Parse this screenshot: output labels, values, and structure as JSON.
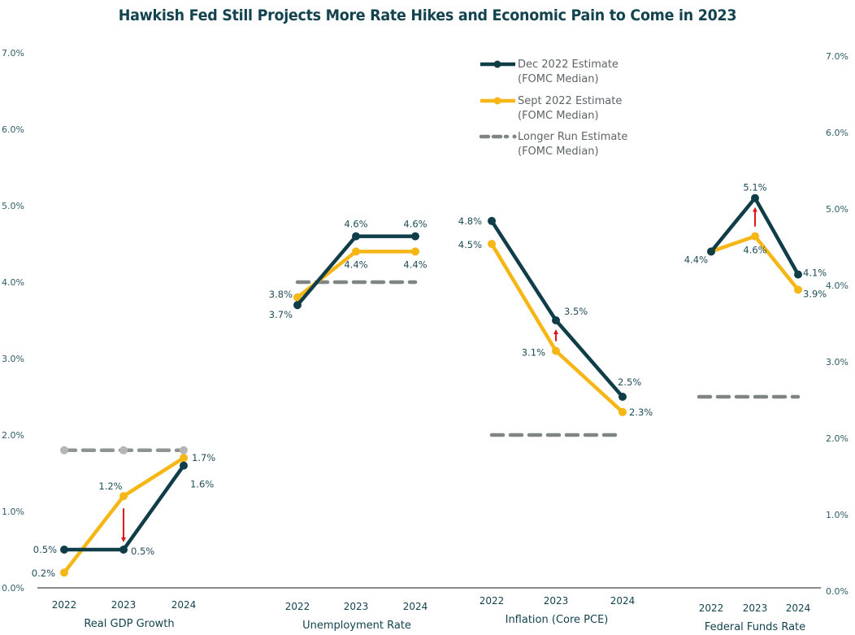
{
  "chart_data": {
    "type": "line",
    "title": "Hawkish Fed Still Projects More Rate Hikes and Economic Pain to Come in 2023",
    "xlabel": "",
    "ylabel": "",
    "ylim": [
      0,
      7
    ],
    "y_ticks": [
      "0.0%",
      "1.0%",
      "2.0%",
      "3.0%",
      "4.0%",
      "5.0%",
      "6.0%",
      "7.0%"
    ],
    "y_tick_values": [
      0,
      1,
      2,
      3,
      4,
      5,
      6,
      7
    ],
    "grid": false,
    "dual_y_axis": true,
    "legend_position": "top-center",
    "legend": [
      {
        "key": "dec",
        "line1": "Dec 2022 Estimate",
        "line2": "(FOMC Median)",
        "color": "#0f3d48",
        "style": "solid"
      },
      {
        "key": "sept",
        "line1": "Sept 2022 Estimate",
        "line2": "(FOMC Median)",
        "color": "#f5b616",
        "style": "solid"
      },
      {
        "key": "longrun",
        "line1": "Longer Run Estimate",
        "line2": "(FOMC Median)",
        "color": "#7f8585",
        "style": "dashed"
      }
    ],
    "colors": {
      "dec": "#0f3d48",
      "sept": "#f5b616",
      "longrun": "#7f8585",
      "arrow": "#e0151b",
      "axis": "#8a8a8a"
    },
    "groups": [
      {
        "name": "Real GDP Growth",
        "categories": [
          "2022",
          "2023",
          "2024"
        ],
        "dec": [
          0.5,
          0.5,
          1.6
        ],
        "sept": [
          0.2,
          1.2,
          1.7
        ],
        "longrun": 1.8,
        "dec_labels": [
          "0.5%",
          "0.5%",
          "1.6%"
        ],
        "sept_labels": [
          "0.2%",
          "1.2%",
          "1.7%"
        ],
        "arrow": {
          "category": "2023",
          "direction": "down"
        }
      },
      {
        "name": "Unemployment Rate",
        "categories": [
          "2022",
          "2023",
          "2024"
        ],
        "dec": [
          3.7,
          4.6,
          4.6
        ],
        "sept": [
          3.8,
          4.4,
          4.4
        ],
        "longrun": 4.0,
        "dec_labels": [
          "3.7%",
          "4.6%",
          "4.6%"
        ],
        "sept_labels": [
          "3.8%",
          "4.4%",
          "4.4%"
        ],
        "arrow": null
      },
      {
        "name": "Inflation (Core PCE)",
        "categories": [
          "2022",
          "2023",
          "2024"
        ],
        "dec": [
          4.8,
          3.5,
          2.5
        ],
        "sept": [
          4.5,
          3.1,
          2.3
        ],
        "longrun": 2.0,
        "dec_labels": [
          "4.8%",
          "3.5%",
          "2.5%"
        ],
        "sept_labels": [
          "4.5%",
          "3.1%",
          "2.3%"
        ],
        "arrow": {
          "category": "2023",
          "direction": "up"
        }
      },
      {
        "name": "Federal Funds Rate",
        "categories": [
          "2022",
          "2023",
          "2024"
        ],
        "dec": [
          4.4,
          5.1,
          4.1
        ],
        "sept": [
          4.4,
          4.6,
          3.9
        ],
        "longrun": 2.5,
        "dec_labels": [
          null,
          "5.1%",
          "4.1%"
        ],
        "sept_labels": [
          "4.4%",
          "4.6%",
          "3.9%"
        ],
        "arrow": {
          "category": "2023",
          "direction": "up"
        }
      }
    ]
  }
}
